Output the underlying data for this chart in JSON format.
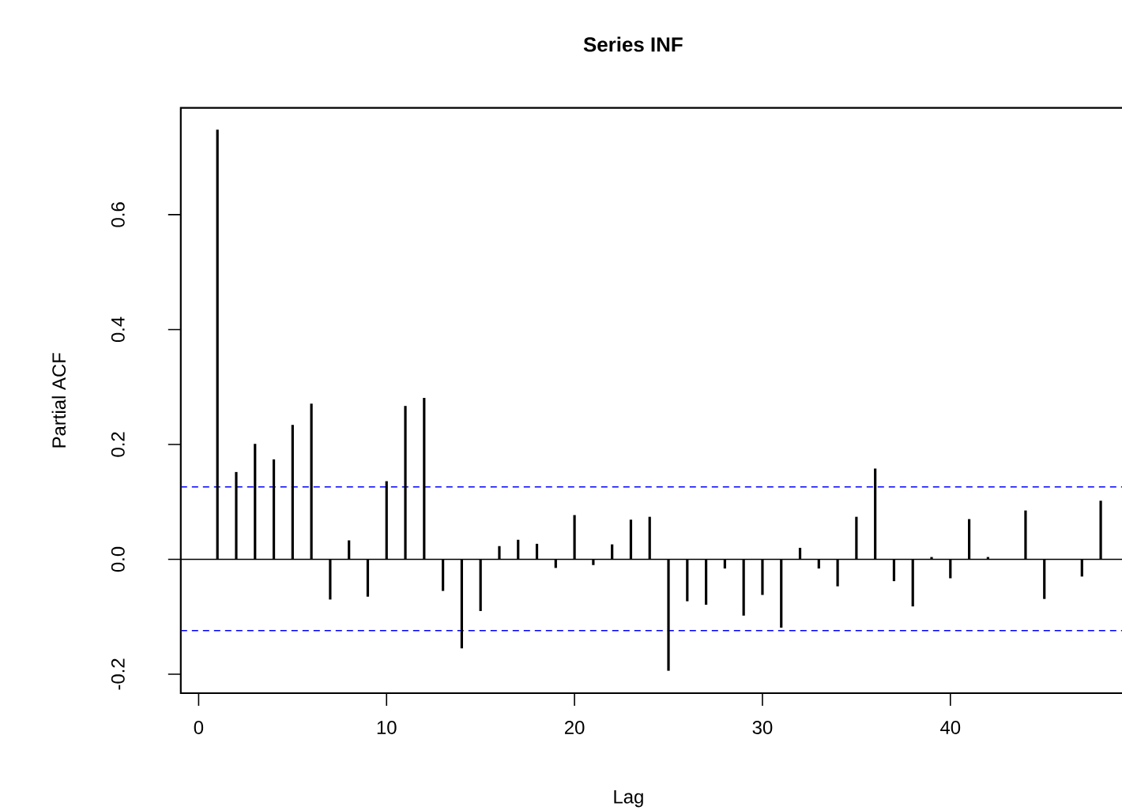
{
  "chart_data": {
    "type": "bar",
    "title": "Series  INF",
    "xlabel": "Lag",
    "ylabel": "Partial ACF",
    "x": [
      1,
      2,
      3,
      4,
      5,
      6,
      7,
      8,
      9,
      10,
      11,
      12,
      13,
      14,
      15,
      16,
      17,
      18,
      19,
      20,
      21,
      22,
      23,
      24,
      25,
      26,
      27,
      28,
      29,
      30,
      31,
      32,
      33,
      34,
      35,
      36,
      37,
      38,
      39,
      40,
      41,
      42,
      43,
      44,
      45,
      46,
      47,
      48
    ],
    "series": [
      {
        "color": "#000000",
        "values": [
          0.748,
          0.152,
          0.201,
          0.174,
          0.234,
          0.271,
          -0.07,
          0.033,
          -0.065,
          0.136,
          0.267,
          0.281,
          -0.055,
          -0.155,
          -0.09,
          0.023,
          0.034,
          0.027,
          -0.015,
          0.077,
          -0.01,
          0.026,
          0.069,
          0.074,
          -0.194,
          -0.073,
          -0.079,
          -0.016,
          -0.098,
          -0.062,
          -0.119,
          0.02,
          -0.016,
          -0.047,
          0.074,
          0.158,
          -0.038,
          -0.082,
          0.004,
          -0.033,
          0.07,
          0.004,
          0.0,
          0.085,
          -0.069,
          0.0,
          -0.03,
          0.102
        ]
      }
    ],
    "xlim": [
      -0.95,
      49.2
    ],
    "ylim": [
      -0.233,
      0.786
    ],
    "xticks": [
      0,
      10,
      20,
      30,
      40
    ],
    "yticks": [
      -0.2,
      {
        "value": 0,
        "label": "0.0"
      },
      0.2,
      0.4,
      0.6
    ],
    "ref_lines": [
      {
        "axis": "y",
        "value": 0,
        "color": "#000000",
        "line_style": "solid"
      },
      {
        "axis": "y",
        "value": 0.126,
        "color": "#0000ff",
        "line_style": "dashed"
      },
      {
        "axis": "y",
        "value": -0.124,
        "color": "#0000ff",
        "line_style": "dashed"
      }
    ],
    "grid": false
  }
}
